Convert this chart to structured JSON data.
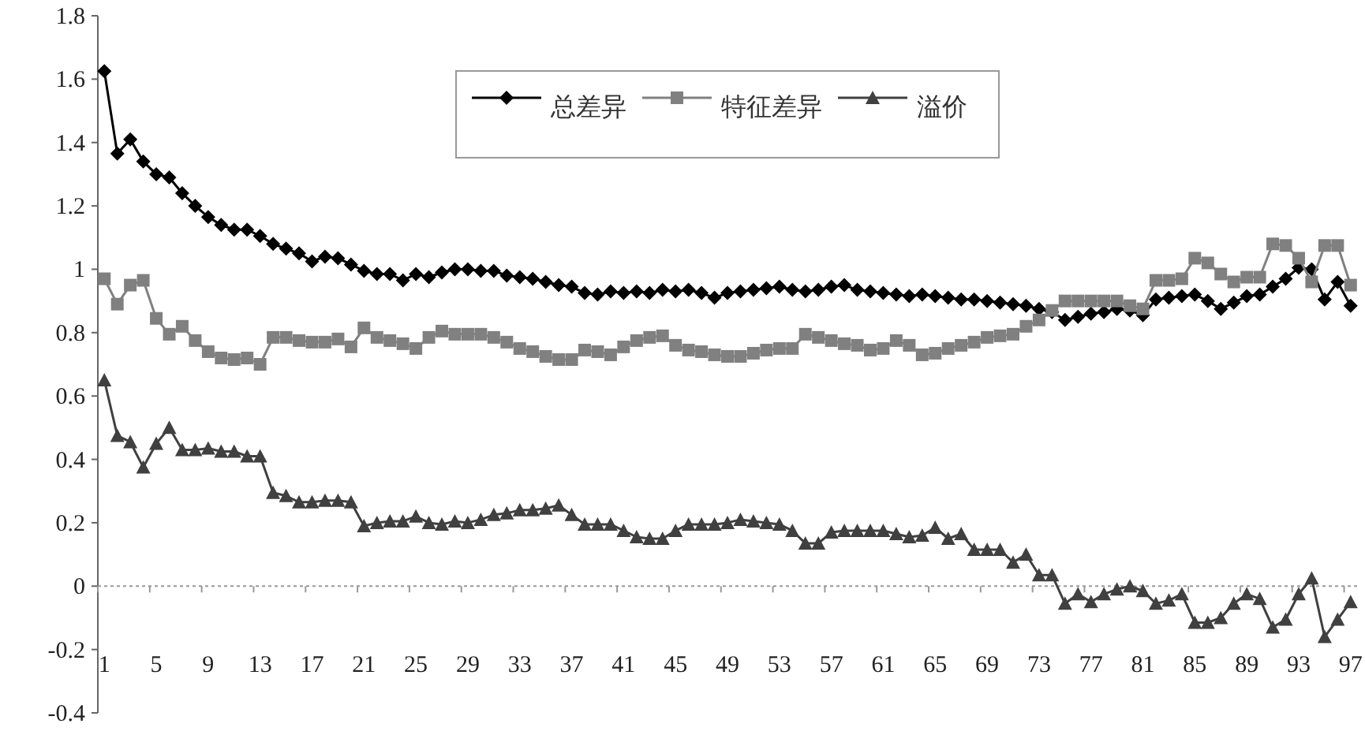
{
  "chart_data": {
    "type": "line",
    "categories": [
      "1",
      null,
      null,
      null,
      "5",
      null,
      null,
      null,
      "9",
      null,
      null,
      null,
      "13",
      null,
      null,
      null,
      "17",
      null,
      null,
      null,
      "21",
      null,
      null,
      null,
      "25",
      null,
      null,
      null,
      "29",
      null,
      null,
      null,
      "33",
      null,
      null,
      null,
      "37",
      null,
      null,
      null,
      "41",
      null,
      null,
      null,
      "45",
      null,
      null,
      null,
      "49",
      null,
      null,
      null,
      "53",
      null,
      null,
      null,
      "57",
      null,
      null,
      null,
      "61",
      null,
      null,
      null,
      "65",
      null,
      null,
      null,
      "69",
      null,
      null,
      null,
      "73",
      null,
      null,
      null,
      "77",
      null,
      null,
      null,
      "81",
      null,
      null,
      null,
      "85",
      null,
      null,
      null,
      "89",
      null,
      null,
      null,
      "93",
      null,
      null,
      null,
      "97"
    ],
    "series": [
      {
        "name": "总差异",
        "color": "#000000",
        "marker": "diamond",
        "values": [
          1.625,
          1.365,
          1.41,
          1.34,
          1.3,
          1.29,
          1.24,
          1.2,
          1.165,
          1.14,
          1.125,
          1.125,
          1.105,
          1.08,
          1.065,
          1.05,
          1.025,
          1.04,
          1.035,
          1.015,
          0.995,
          0.985,
          0.985,
          0.965,
          0.985,
          0.975,
          0.99,
          1.0,
          1.0,
          0.995,
          0.995,
          0.98,
          0.975,
          0.97,
          0.96,
          0.95,
          0.945,
          0.925,
          0.92,
          0.93,
          0.925,
          0.93,
          0.925,
          0.935,
          0.93,
          0.935,
          0.925,
          0.91,
          0.925,
          0.93,
          0.935,
          0.94,
          0.945,
          0.935,
          0.93,
          0.935,
          0.945,
          0.95,
          0.935,
          0.93,
          0.925,
          0.92,
          0.915,
          0.92,
          0.915,
          0.91,
          0.905,
          0.905,
          0.9,
          0.895,
          0.89,
          0.885,
          0.875,
          0.865,
          0.84,
          0.85,
          0.86,
          0.865,
          0.875,
          0.87,
          0.855,
          0.905,
          0.91,
          0.915,
          0.92,
          0.9,
          0.875,
          0.895,
          0.915,
          0.92,
          0.945,
          0.97,
          1.005,
          1.0,
          0.905,
          0.96,
          0.885
        ]
      },
      {
        "name": "特征差异",
        "color": "#808080",
        "marker": "square",
        "values": [
          0.97,
          0.89,
          0.95,
          0.965,
          0.845,
          0.795,
          0.82,
          0.775,
          0.74,
          0.72,
          0.715,
          0.72,
          0.7,
          0.785,
          0.785,
          0.775,
          0.77,
          0.77,
          0.78,
          0.755,
          0.815,
          0.785,
          0.775,
          0.765,
          0.75,
          0.785,
          0.805,
          0.795,
          0.795,
          0.795,
          0.785,
          0.77,
          0.75,
          0.74,
          0.725,
          0.715,
          0.715,
          0.745,
          0.74,
          0.73,
          0.755,
          0.775,
          0.785,
          0.79,
          0.76,
          0.745,
          0.74,
          0.73,
          0.725,
          0.725,
          0.735,
          0.745,
          0.75,
          0.75,
          0.795,
          0.785,
          0.775,
          0.765,
          0.76,
          0.745,
          0.75,
          0.775,
          0.76,
          0.73,
          0.735,
          0.75,
          0.76,
          0.77,
          0.785,
          0.79,
          0.795,
          0.82,
          0.84,
          0.87,
          0.9,
          0.9,
          0.9,
          0.9,
          0.9,
          0.885,
          0.875,
          0.965,
          0.965,
          0.97,
          1.035,
          1.02,
          0.985,
          0.96,
          0.975,
          0.975,
          1.08,
          1.075,
          1.035,
          0.96,
          1.075,
          1.075,
          0.95
        ]
      },
      {
        "name": "溢价",
        "color": "#404040",
        "marker": "triangle",
        "values": [
          0.65,
          0.475,
          0.455,
          0.375,
          0.45,
          0.5,
          0.43,
          0.43,
          0.435,
          0.425,
          0.425,
          0.41,
          0.41,
          0.295,
          0.285,
          0.265,
          0.265,
          0.27,
          0.27,
          0.265,
          0.19,
          0.2,
          0.205,
          0.205,
          0.22,
          0.2,
          0.195,
          0.205,
          0.2,
          0.21,
          0.225,
          0.23,
          0.24,
          0.24,
          0.245,
          0.255,
          0.225,
          0.195,
          0.195,
          0.195,
          0.175,
          0.155,
          0.15,
          0.15,
          0.175,
          0.195,
          0.195,
          0.195,
          0.2,
          0.21,
          0.205,
          0.2,
          0.195,
          0.175,
          0.135,
          0.135,
          0.17,
          0.175,
          0.175,
          0.175,
          0.175,
          0.165,
          0.155,
          0.16,
          0.185,
          0.15,
          0.165,
          0.115,
          0.115,
          0.115,
          0.075,
          0.1,
          0.035,
          0.035,
          -0.055,
          -0.025,
          -0.05,
          -0.025,
          -0.01,
          0.0,
          -0.015,
          -0.055,
          -0.045,
          -0.025,
          -0.115,
          -0.115,
          -0.1,
          -0.055,
          -0.025,
          -0.04,
          -0.13,
          -0.105,
          -0.025,
          0.025,
          -0.16,
          -0.105,
          -0.05
        ]
      }
    ],
    "ylim": [
      -0.4,
      1.8
    ],
    "yticks": [
      -0.4,
      -0.2,
      0,
      0.2,
      0.4,
      0.6,
      0.8,
      1,
      1.2,
      1.4,
      1.6,
      1.8
    ],
    "legend": "top",
    "ref_lines": [
      {
        "axis": "y",
        "value": 0,
        "color": "#999999",
        "line_style": "dotted"
      }
    ]
  }
}
